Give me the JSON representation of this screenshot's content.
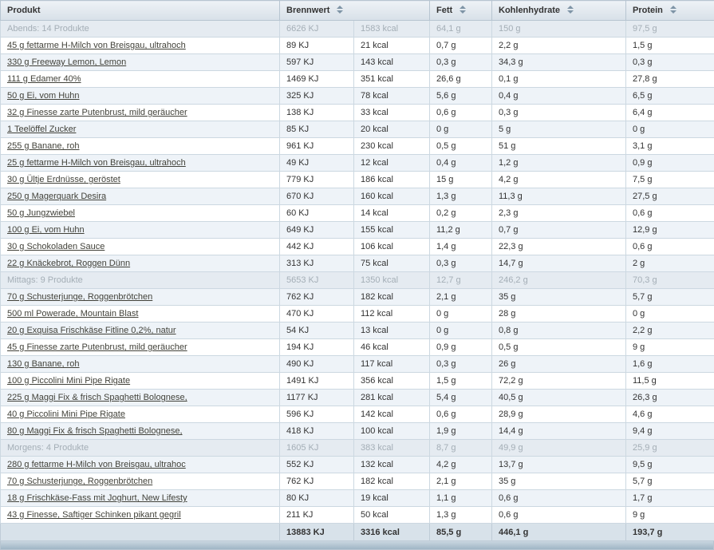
{
  "colors": {
    "header_bg": "#dde5ec",
    "row_alt_bg": "#eef3f8",
    "group_row_bg": "#e5ebf1",
    "group_text": "#a4aeb6",
    "totals_bg": "#d8e2ea",
    "grid_line": "#ccd8e1",
    "link_text": "#42423a"
  },
  "table": {
    "columns": [
      {
        "label": "Produkt",
        "sortable": false
      },
      {
        "label": "Brennwert",
        "sortable": true
      },
      {
        "label": "Fett",
        "sortable": true
      },
      {
        "label": "Kohlenhydrate",
        "sortable": true
      },
      {
        "label": "Protein",
        "sortable": true
      }
    ],
    "groups": [
      {
        "header": {
          "label": "Abends: 14 Produkte",
          "kj": "6626 KJ",
          "kcal": "1583 kcal",
          "fat": "64,1 g",
          "carbs": "150 g",
          "protein": "97,5 g"
        },
        "rows": [
          {
            "product": "45 g fettarme H-Milch von Breisgau, ultrahoch",
            "kj": "89 KJ",
            "kcal": "21 kcal",
            "fat": "0,7 g",
            "carbs": "2,2 g",
            "protein": "1,5 g"
          },
          {
            "product": "330 g Freeway Lemon, Lemon",
            "kj": "597 KJ",
            "kcal": "143 kcal",
            "fat": "0,3 g",
            "carbs": "34,3 g",
            "protein": "0,3 g"
          },
          {
            "product": "111 g Edamer 40%",
            "kj": "1469 KJ",
            "kcal": "351 kcal",
            "fat": "26,6 g",
            "carbs": "0,1 g",
            "protein": "27,8 g"
          },
          {
            "product": "50 g Ei, vom Huhn",
            "kj": "325 KJ",
            "kcal": "78 kcal",
            "fat": "5,6 g",
            "carbs": "0,4 g",
            "protein": "6,5 g"
          },
          {
            "product": "32 g Finesse zarte Putenbrust, mild geräucher",
            "kj": "138 KJ",
            "kcal": "33 kcal",
            "fat": "0,6 g",
            "carbs": "0,3 g",
            "protein": "6,4 g"
          },
          {
            "product": "1 Teelöffel Zucker",
            "kj": "85 KJ",
            "kcal": "20 kcal",
            "fat": "0 g",
            "carbs": "5 g",
            "protein": "0 g"
          },
          {
            "product": "255 g Banane, roh",
            "kj": "961 KJ",
            "kcal": "230 kcal",
            "fat": "0,5 g",
            "carbs": "51 g",
            "protein": "3,1 g"
          },
          {
            "product": "25 g fettarme H-Milch von Breisgau, ultrahoch",
            "kj": "49 KJ",
            "kcal": "12 kcal",
            "fat": "0,4 g",
            "carbs": "1,2 g",
            "protein": "0,9 g"
          },
          {
            "product": "30 g Ültje Erdnüsse, geröstet",
            "kj": "779 KJ",
            "kcal": "186 kcal",
            "fat": "15 g",
            "carbs": "4,2 g",
            "protein": "7,5 g"
          },
          {
            "product": "250 g Magerquark Desira",
            "kj": "670 KJ",
            "kcal": "160 kcal",
            "fat": "1,3 g",
            "carbs": "11,3 g",
            "protein": "27,5 g"
          },
          {
            "product": "50 g Jungzwiebel",
            "kj": "60 KJ",
            "kcal": "14 kcal",
            "fat": "0,2 g",
            "carbs": "2,3 g",
            "protein": "0,6 g"
          },
          {
            "product": "100 g Ei, vom Huhn",
            "kj": "649 KJ",
            "kcal": "155 kcal",
            "fat": "11,2 g",
            "carbs": "0,7 g",
            "protein": "12,9 g"
          },
          {
            "product": "30 g Schokoladen Sauce",
            "kj": "442 KJ",
            "kcal": "106 kcal",
            "fat": "1,4 g",
            "carbs": "22,3 g",
            "protein": "0,6 g"
          },
          {
            "product": "22 g Knäckebrot, Roggen Dünn",
            "kj": "313 KJ",
            "kcal": "75 kcal",
            "fat": "0,3 g",
            "carbs": "14,7 g",
            "protein": "2 g"
          }
        ]
      },
      {
        "header": {
          "label": "Mittags: 9 Produkte",
          "kj": "5653 KJ",
          "kcal": "1350 kcal",
          "fat": "12,7 g",
          "carbs": "246,2 g",
          "protein": "70,3 g"
        },
        "rows": [
          {
            "product": "70 g Schusterjunge, Roggenbrötchen",
            "kj": "762 KJ",
            "kcal": "182 kcal",
            "fat": "2,1 g",
            "carbs": "35 g",
            "protein": "5,7 g"
          },
          {
            "product": "500 ml Powerade, Mountain Blast",
            "kj": "470 KJ",
            "kcal": "112 kcal",
            "fat": "0 g",
            "carbs": "28 g",
            "protein": "0 g"
          },
          {
            "product": "20 g Exquisa Frischkäse Fitline 0,2%, natur",
            "kj": "54 KJ",
            "kcal": "13 kcal",
            "fat": "0 g",
            "carbs": "0,8 g",
            "protein": "2,2 g"
          },
          {
            "product": "45 g Finesse zarte Putenbrust, mild geräucher",
            "kj": "194 KJ",
            "kcal": "46 kcal",
            "fat": "0,9 g",
            "carbs": "0,5 g",
            "protein": "9 g"
          },
          {
            "product": "130 g Banane, roh",
            "kj": "490 KJ",
            "kcal": "117 kcal",
            "fat": "0,3 g",
            "carbs": "26 g",
            "protein": "1,6 g"
          },
          {
            "product": "100 g Piccolini Mini Pipe Rigate",
            "kj": "1491 KJ",
            "kcal": "356 kcal",
            "fat": "1,5 g",
            "carbs": "72,2 g",
            "protein": "11,5 g"
          },
          {
            "product": "225 g Maggi Fix & frisch Spaghetti Bolognese,",
            "kj": "1177 KJ",
            "kcal": "281 kcal",
            "fat": "5,4 g",
            "carbs": "40,5 g",
            "protein": "26,3 g"
          },
          {
            "product": "40 g Piccolini Mini Pipe Rigate",
            "kj": "596 KJ",
            "kcal": "142 kcal",
            "fat": "0,6 g",
            "carbs": "28,9 g",
            "protein": "4,6 g"
          },
          {
            "product": "80 g Maggi Fix & frisch Spaghetti Bolognese,",
            "kj": "418 KJ",
            "kcal": "100 kcal",
            "fat": "1,9 g",
            "carbs": "14,4 g",
            "protein": "9,4 g"
          }
        ]
      },
      {
        "header": {
          "label": "Morgens: 4 Produkte",
          "kj": "1605 KJ",
          "kcal": "383 kcal",
          "fat": "8,7 g",
          "carbs": "49,9 g",
          "protein": "25,9 g"
        },
        "rows": [
          {
            "product": "280 g fettarme H-Milch von Breisgau, ultrahoc",
            "kj": "552 KJ",
            "kcal": "132 kcal",
            "fat": "4,2 g",
            "carbs": "13,7 g",
            "protein": "9,5 g"
          },
          {
            "product": "70 g Schusterjunge, Roggenbrötchen",
            "kj": "762 KJ",
            "kcal": "182 kcal",
            "fat": "2,1 g",
            "carbs": "35 g",
            "protein": "5,7 g"
          },
          {
            "product": "18 g Frischkäse-Fass mit Joghurt, New Lifesty",
            "kj": "80 KJ",
            "kcal": "19 kcal",
            "fat": "1,1 g",
            "carbs": "0,6 g",
            "protein": "1,7 g"
          },
          {
            "product": "43 g Finesse, Saftiger Schinken pikant gegril",
            "kj": "211 KJ",
            "kcal": "50 kcal",
            "fat": "1,3 g",
            "carbs": "0,6 g",
            "protein": "9 g"
          }
        ]
      }
    ],
    "totals": {
      "label": "",
      "kj": "13883 KJ",
      "kcal": "3316 kcal",
      "fat": "85,5 g",
      "carbs": "446,1 g",
      "protein": "193,7 g"
    }
  }
}
